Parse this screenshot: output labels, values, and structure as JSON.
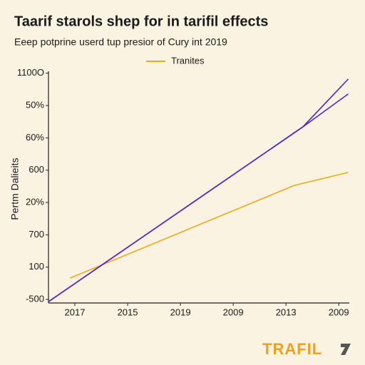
{
  "chart_data": {
    "type": "line",
    "title": "Taarif starols shep for in tarifil effects",
    "subtitle": "Eeep potprine userd tup presior of Cury int 2019",
    "y_label": "Pertm Dalieits",
    "watermark": "TRAFIL",
    "legend": "top",
    "xlim": [
      0,
      5.7
    ],
    "xticks": [
      {
        "value": 0.5,
        "label": "2017"
      },
      {
        "value": 1.5,
        "label": "2015"
      },
      {
        "value": 2.5,
        "label": "2019"
      },
      {
        "value": 3.5,
        "label": "2009"
      },
      {
        "value": 4.5,
        "label": "2013"
      },
      {
        "value": 5.5,
        "label": "2009"
      }
    ],
    "ylim": [
      -0.11,
      7.06
    ],
    "yticks": [
      {
        "value": 0,
        "label": "-500"
      },
      {
        "value": 1,
        "label": "100"
      },
      {
        "value": 2,
        "label": "700"
      },
      {
        "value": 3,
        "label": "20%"
      },
      {
        "value": 4,
        "label": "600"
      },
      {
        "value": 5,
        "label": "60%"
      },
      {
        "value": 6,
        "label": "50%"
      },
      {
        "value": 7,
        "label": "1100O"
      }
    ],
    "series": [
      {
        "name": "Tranites",
        "color": "#f0a818",
        "x": [
          0.41,
          4.66,
          5.68
        ],
        "values": [
          0.66,
          3.53,
          3.93
        ]
      },
      {
        "color": "#5522c8",
        "x": [
          0,
          4.82,
          5.68
        ],
        "values": [
          -0.07,
          5.34,
          6.82
        ]
      },
      {
        "color": "#5522c8",
        "x": [
          0,
          4.82,
          5.68
        ],
        "values": [
          -0.07,
          5.34,
          6.36
        ]
      }
    ]
  }
}
